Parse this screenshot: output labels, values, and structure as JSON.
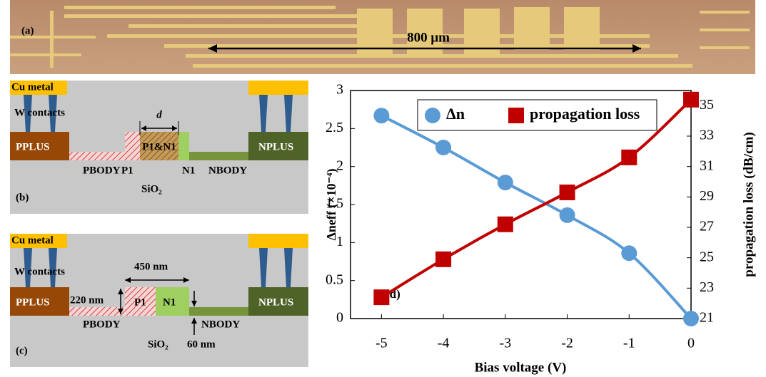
{
  "panel_a": {
    "label": "(a)",
    "scale": "800 μm"
  },
  "panel_b": {
    "label": "(b)",
    "cu_metal": "Cu metal",
    "w_contacts": "W contacts",
    "pplus": "PPLUS",
    "pbody": "PBODY",
    "p1": "P1",
    "p1n1": "P1&N1",
    "d": "d",
    "n1": "N1",
    "nbody": "NBODY",
    "nplus": "NPLUS",
    "oxide": "SiO₂"
  },
  "panel_c": {
    "label": "(c)",
    "cu_metal": "Cu metal",
    "w_contacts": "W contacts",
    "width": "450 nm",
    "pplus": "PPLUS",
    "height": "220 nm",
    "p1": "P1",
    "n1": "N1",
    "pbody": "PBODY",
    "nbody": "NBODY",
    "nplus": "NPLUS",
    "oxide": "SiO₂",
    "slab": "60 nm"
  },
  "chart_data": {
    "type": "scatter",
    "annotation": "(d)",
    "x_label": "Bias voltage (V)",
    "y_label": "Δneff (×10⁻⁴)",
    "y2_label": "propagation loss (dB/cm)",
    "x": [
      -5,
      -4,
      -3,
      -2,
      -1,
      0
    ],
    "series": [
      {
        "name": "Δn",
        "color": "#5b9bd5",
        "marker": "circle",
        "values": [
          2.67,
          2.25,
          1.79,
          1.36,
          0.86,
          0
        ]
      },
      {
        "name": "propagation loss",
        "color": "#c00000",
        "marker": "square",
        "axis": "y2",
        "values": [
          22.4,
          24.9,
          27.2,
          29.3,
          31.6,
          35.4
        ]
      }
    ],
    "xlim": [
      -5.5,
      0
    ],
    "xticks": [
      -5,
      -4,
      -3,
      -2,
      -1,
      0
    ],
    "ylim": [
      0,
      3
    ],
    "yticks": [
      0,
      0.5,
      1,
      1.5,
      2,
      2.5,
      3
    ],
    "y2lim": [
      21,
      36
    ],
    "y2ticks": [
      21,
      23,
      25,
      27,
      29,
      31,
      33,
      35
    ],
    "legend": "top"
  }
}
